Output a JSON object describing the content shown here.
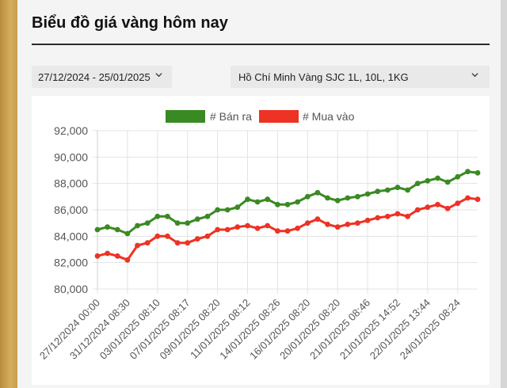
{
  "page": {
    "title": "Biểu đồ giá vàng hôm nay",
    "filters": {
      "date_range": "27/12/2024 - 25/01/2025",
      "product": "Hồ Chí Minh Vàng SJC 1L, 10L, 1KG"
    }
  },
  "colors": {
    "sell": "#3a8a24",
    "buy": "#ee3224",
    "grid": "#e3e3e3",
    "axis_text": "#555555"
  },
  "chart_data": {
    "type": "line",
    "title": "",
    "xlabel": "",
    "ylabel": "",
    "ylim": [
      80000,
      92000
    ],
    "yticks": [
      "80,000",
      "82,000",
      "84,000",
      "86,000",
      "88,000",
      "90,000",
      "92,000"
    ],
    "grid": true,
    "legend_position": "top-center",
    "x_tick_labels": [
      "27/12/2024 00:00",
      "31/12/2024 08:30",
      "03/01/2025 08:10",
      "07/01/2025 08:17",
      "09/01/2025 08:20",
      "11/01/2025 08:12",
      "14/01/2025 08:26",
      "16/01/2025 08:20",
      "20/01/2025 08:20",
      "21/01/2025 08:46",
      "21/01/2025 14:52",
      "22/01/2025 13:44",
      "24/01/2025 08:24"
    ],
    "series": [
      {
        "name": "# Bán ra",
        "values": [
          84500,
          84700,
          84500,
          84200,
          84800,
          85000,
          85500,
          85500,
          85000,
          85000,
          85300,
          85500,
          86000,
          86000,
          86200,
          86800,
          86600,
          86800,
          86400,
          86400,
          86600,
          87000,
          87300,
          86900,
          86700,
          86900,
          87000,
          87200,
          87400,
          87500,
          87700,
          87500,
          88000,
          88200,
          88400,
          88100,
          88500,
          88900,
          88800
        ]
      },
      {
        "name": "# Mua vào",
        "values": [
          82500,
          82700,
          82500,
          82200,
          83300,
          83500,
          84000,
          84000,
          83500,
          83500,
          83800,
          84000,
          84500,
          84500,
          84700,
          84800,
          84600,
          84800,
          84400,
          84400,
          84600,
          85000,
          85300,
          84900,
          84700,
          84900,
          85000,
          85200,
          85400,
          85500,
          85700,
          85500,
          86000,
          86200,
          86400,
          86100,
          86500,
          86900,
          86800
        ]
      }
    ]
  }
}
